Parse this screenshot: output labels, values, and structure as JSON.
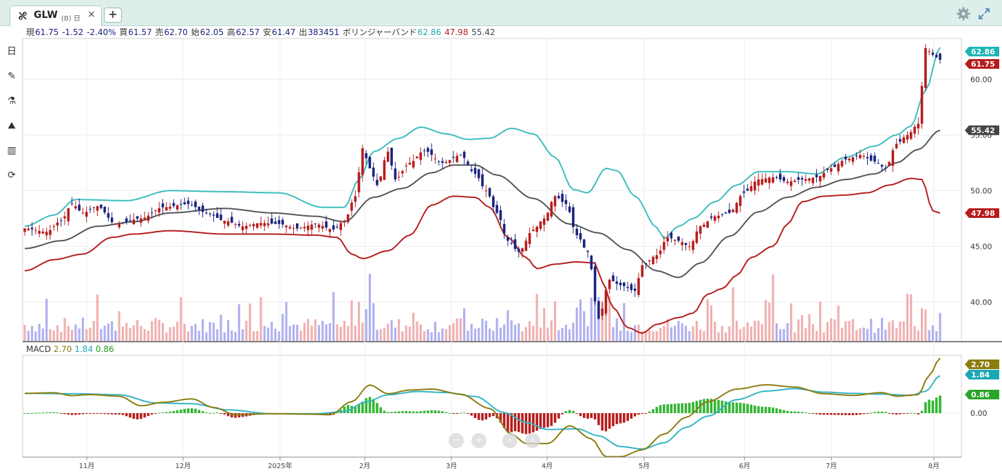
{
  "tab": {
    "symbol": "GLW",
    "suffix": "(B) 日",
    "close": "×",
    "add": "+"
  },
  "toolbar": {
    "icons": [
      "gear-icon",
      "expand-icon"
    ]
  },
  "quote": [
    {
      "label": "現",
      "value": "61.75"
    },
    {
      "label": "",
      "value": "-1.52"
    },
    {
      "label": "",
      "value": "-2.40%"
    },
    {
      "label": "買",
      "value": "61.57"
    },
    {
      "label": "売",
      "value": "62.70"
    },
    {
      "label": "始",
      "value": "62.05"
    },
    {
      "label": "高",
      "value": "62.57"
    },
    {
      "label": "安",
      "value": "61.47"
    },
    {
      "label": "出",
      "value": "383451"
    }
  ],
  "bollinger": {
    "label": "ボリンジャーバンド",
    "upper": "62.86",
    "lower": "47.98",
    "middle": "55.42"
  },
  "side_tools": [
    {
      "name": "timeframe-tool",
      "text": "日"
    },
    {
      "name": "draw-tool-icon",
      "text": "✎"
    },
    {
      "name": "indicator-flask-icon",
      "text": "⚗"
    },
    {
      "name": "chart-style-icon",
      "text": "⛰"
    },
    {
      "name": "bar-chart-icon",
      "text": "▥"
    },
    {
      "name": "refresh-icon",
      "text": "⟳"
    }
  ],
  "macd": {
    "label": "MACD",
    "macd": "2.70",
    "signal": "1.84",
    "hist": "0.86"
  },
  "chart_data": {
    "type": "candlestick",
    "title": "",
    "x_labels": [
      "11月",
      "12月",
      "2025年",
      "2月",
      "3月",
      "4月",
      "5月",
      "6月",
      "7月",
      "8月"
    ],
    "price_ticks": [
      "60.00",
      "55.00",
      "50.00",
      "45.00",
      "40.00"
    ],
    "price_ylim": [
      36.5,
      63.6
    ],
    "macd_ticks": [
      "0.00"
    ],
    "price_tags": [
      {
        "name": "bb-upper-tag",
        "value": "62.86",
        "color": "#1fb5b5"
      },
      {
        "name": "last-price-tag",
        "value": "61.75",
        "color": "#b71c1c"
      },
      {
        "name": "bb-middle-tag",
        "value": "55.42",
        "color": "#444444"
      },
      {
        "name": "bb-lower-tag",
        "value": "47.98",
        "color": "#b71c1c"
      }
    ],
    "macd_tags": [
      {
        "name": "macd-tag",
        "value": "2.70",
        "color": "#8b7d10"
      },
      {
        "name": "signal-tag",
        "value": "1.84",
        "color": "#1aa7b5"
      },
      {
        "name": "hist-tag",
        "value": "0.86",
        "color": "#2aa52a"
      }
    ],
    "colors": {
      "up": "#b71c1c",
      "down": "#1a237e",
      "bb_upper": "#3bbdbd",
      "bb_lower": "#b71c1c",
      "bb_mid": "#555555",
      "macd": "#8b7d10",
      "signal": "#33b5c5",
      "hist_up": "#33b533",
      "hist_down": "#b71c1c",
      "vol_up": "#f0b0b0",
      "vol_down": "#b0b0f0"
    },
    "price_anchors": [
      [
        0,
        46.6
      ],
      [
        6,
        46.3
      ],
      [
        10,
        47.3
      ],
      [
        13,
        48.8
      ],
      [
        16,
        48.0
      ],
      [
        20,
        48.6
      ],
      [
        25,
        47.0
      ],
      [
        32,
        47.5
      ],
      [
        38,
        48.5
      ],
      [
        45,
        48.8
      ],
      [
        50,
        48.0
      ],
      [
        55,
        47.3
      ],
      [
        60,
        46.8
      ],
      [
        65,
        47.1
      ],
      [
        70,
        47.0
      ],
      [
        75,
        46.6
      ],
      [
        80,
        47.0
      ],
      [
        85,
        46.5
      ],
      [
        88,
        47.3
      ],
      [
        91,
        49.5
      ],
      [
        93,
        53.8
      ],
      [
        95,
        52.0
      ],
      [
        97,
        50.5
      ],
      [
        100,
        53.5
      ],
      [
        102,
        51.0
      ],
      [
        106,
        52.5
      ],
      [
        110,
        53.6
      ],
      [
        115,
        52.5
      ],
      [
        120,
        53.2
      ],
      [
        124,
        51.5
      ],
      [
        127,
        50.0
      ],
      [
        130,
        48.0
      ],
      [
        133,
        45.5
      ],
      [
        136,
        44.5
      ],
      [
        140,
        46.5
      ],
      [
        143,
        47.5
      ],
      [
        146,
        49.5
      ],
      [
        149,
        48.8
      ],
      [
        152,
        46.0
      ],
      [
        155,
        44.5
      ],
      [
        158,
        38.5
      ],
      [
        161,
        42.0
      ],
      [
        164,
        41.5
      ],
      [
        168,
        41.0
      ],
      [
        170,
        43.3
      ],
      [
        174,
        44.2
      ],
      [
        177,
        45.8
      ],
      [
        180,
        45.5
      ],
      [
        183,
        45.0
      ],
      [
        186,
        46.8
      ],
      [
        190,
        47.7
      ],
      [
        194,
        48.0
      ],
      [
        198,
        49.8
      ],
      [
        202,
        51.0
      ],
      [
        206,
        51.2
      ],
      [
        210,
        50.8
      ],
      [
        214,
        51.0
      ],
      [
        218,
        51.2
      ],
      [
        222,
        52.0
      ],
      [
        226,
        52.8
      ],
      [
        230,
        53.2
      ],
      [
        234,
        52.6
      ],
      [
        237,
        52.0
      ],
      [
        240,
        54.2
      ],
      [
        243,
        55.0
      ],
      [
        246,
        56.0
      ],
      [
        248,
        62.8
      ],
      [
        250,
        62.2
      ],
      [
        252,
        61.75
      ]
    ],
    "bb_upper_anchors": [
      [
        0,
        46.8
      ],
      [
        8,
        47.8
      ],
      [
        14,
        49.2
      ],
      [
        28,
        49.1
      ],
      [
        40,
        50.0
      ],
      [
        55,
        49.9
      ],
      [
        70,
        49.8
      ],
      [
        82,
        48.5
      ],
      [
        88,
        48.5
      ],
      [
        92,
        51.0
      ],
      [
        96,
        53.5
      ],
      [
        103,
        54.7
      ],
      [
        109,
        55.7
      ],
      [
        116,
        55.1
      ],
      [
        122,
        54.6
      ],
      [
        128,
        54.7
      ],
      [
        134,
        55.6
      ],
      [
        140,
        55.1
      ],
      [
        146,
        53.0
      ],
      [
        151,
        50.1
      ],
      [
        155,
        49.8
      ],
      [
        160,
        52.0
      ],
      [
        163,
        51.8
      ],
      [
        168,
        49.5
      ],
      [
        174,
        46.7
      ],
      [
        176,
        45.7
      ],
      [
        180,
        46.8
      ],
      [
        184,
        47.5
      ],
      [
        190,
        49.0
      ],
      [
        196,
        50.5
      ],
      [
        202,
        51.7
      ],
      [
        210,
        51.7
      ],
      [
        218,
        51.5
      ],
      [
        226,
        53.0
      ],
      [
        234,
        54.0
      ],
      [
        240,
        55.0
      ],
      [
        244,
        55.8
      ],
      [
        248,
        59.0
      ],
      [
        252,
        62.86
      ]
    ],
    "bb_lower_anchors": [
      [
        0,
        42.8
      ],
      [
        8,
        43.8
      ],
      [
        16,
        44.3
      ],
      [
        24,
        45.8
      ],
      [
        30,
        46.1
      ],
      [
        40,
        46.4
      ],
      [
        55,
        46.1
      ],
      [
        68,
        46.1
      ],
      [
        80,
        46.0
      ],
      [
        86,
        45.8
      ],
      [
        90,
        44.3
      ],
      [
        93,
        43.9
      ],
      [
        100,
        44.6
      ],
      [
        106,
        46.0
      ],
      [
        112,
        48.7
      ],
      [
        118,
        49.5
      ],
      [
        124,
        49.4
      ],
      [
        128,
        48.5
      ],
      [
        133,
        45.8
      ],
      [
        138,
        44.0
      ],
      [
        141,
        43.0
      ],
      [
        146,
        43.4
      ],
      [
        152,
        43.6
      ],
      [
        157,
        43.5
      ],
      [
        159,
        41.8
      ],
      [
        162,
        39.5
      ],
      [
        166,
        37.7
      ],
      [
        170,
        37.2
      ],
      [
        174,
        38.0
      ],
      [
        180,
        38.6
      ],
      [
        184,
        39.0
      ],
      [
        188,
        40.7
      ],
      [
        192,
        41.2
      ],
      [
        196,
        42.4
      ],
      [
        200,
        44.0
      ],
      [
        206,
        45.0
      ],
      [
        210,
        47.0
      ],
      [
        214,
        49.0
      ],
      [
        220,
        49.5
      ],
      [
        226,
        49.6
      ],
      [
        232,
        49.8
      ],
      [
        238,
        50.5
      ],
      [
        244,
        51.1
      ],
      [
        247,
        51.0
      ],
      [
        250,
        48.2
      ],
      [
        252,
        47.98
      ]
    ],
    "bb_mid_anchors": [
      [
        0,
        44.8
      ],
      [
        10,
        45.5
      ],
      [
        20,
        46.8
      ],
      [
        30,
        47.2
      ],
      [
        40,
        48.0
      ],
      [
        55,
        48.4
      ],
      [
        68,
        48.0
      ],
      [
        80,
        47.7
      ],
      [
        88,
        47.2
      ],
      [
        96,
        49.4
      ],
      [
        104,
        50.2
      ],
      [
        112,
        51.6
      ],
      [
        118,
        52.3
      ],
      [
        124,
        52.3
      ],
      [
        130,
        51.4
      ],
      [
        140,
        49.3
      ],
      [
        150,
        47.0
      ],
      [
        158,
        46.2
      ],
      [
        166,
        44.7
      ],
      [
        174,
        42.8
      ],
      [
        180,
        42.2
      ],
      [
        186,
        43.5
      ],
      [
        194,
        45.9
      ],
      [
        202,
        48.1
      ],
      [
        210,
        49.4
      ],
      [
        218,
        50.3
      ],
      [
        226,
        51.0
      ],
      [
        234,
        51.5
      ],
      [
        240,
        52.5
      ],
      [
        246,
        53.7
      ],
      [
        252,
        55.42
      ]
    ],
    "macd_anchors": [
      [
        0,
        0.97
      ],
      [
        8,
        1.0
      ],
      [
        13,
        0.86
      ],
      [
        18,
        0.91
      ],
      [
        26,
        0.83
      ],
      [
        32,
        0.36
      ],
      [
        38,
        0.53
      ],
      [
        46,
        0.7
      ],
      [
        52,
        0.28
      ],
      [
        58,
        -0.08
      ],
      [
        68,
        -0.03
      ],
      [
        78,
        -0.05
      ],
      [
        84,
        -0.08
      ],
      [
        90,
        0.56
      ],
      [
        95,
        1.38
      ],
      [
        100,
        0.95
      ],
      [
        106,
        1.13
      ],
      [
        112,
        1.18
      ],
      [
        120,
        0.93
      ],
      [
        128,
        0.23
      ],
      [
        134,
        -1.03
      ],
      [
        138,
        -1.49
      ],
      [
        144,
        -1.49
      ],
      [
        150,
        -0.62
      ],
      [
        156,
        -1.26
      ],
      [
        160,
        -2.14
      ],
      [
        164,
        -2.14
      ],
      [
        170,
        -1.8
      ],
      [
        176,
        -1.03
      ],
      [
        182,
        -0.21
      ],
      [
        188,
        0.56
      ],
      [
        196,
        1.18
      ],
      [
        204,
        1.39
      ],
      [
        212,
        1.28
      ],
      [
        220,
        0.95
      ],
      [
        228,
        0.87
      ],
      [
        236,
        1.01
      ],
      [
        240,
        0.83
      ],
      [
        246,
        0.91
      ],
      [
        249,
        1.85
      ],
      [
        252,
        2.7
      ]
    ],
    "signal_anchors": [
      [
        0,
        0.97
      ],
      [
        14,
        0.95
      ],
      [
        26,
        0.9
      ],
      [
        36,
        0.5
      ],
      [
        46,
        0.46
      ],
      [
        56,
        0.16
      ],
      [
        68,
        -0.03
      ],
      [
        80,
        -0.03
      ],
      [
        88,
        0.08
      ],
      [
        94,
        0.56
      ],
      [
        100,
        0.9
      ],
      [
        108,
        1.06
      ],
      [
        116,
        1.01
      ],
      [
        124,
        0.82
      ],
      [
        132,
        0.03
      ],
      [
        138,
        -0.46
      ],
      [
        144,
        -0.8
      ],
      [
        152,
        -0.77
      ],
      [
        158,
        -1.11
      ],
      [
        164,
        -1.64
      ],
      [
        170,
        -1.76
      ],
      [
        176,
        -1.46
      ],
      [
        182,
        -0.7
      ],
      [
        188,
        -0.15
      ],
      [
        196,
        0.66
      ],
      [
        204,
        1.08
      ],
      [
        212,
        1.2
      ],
      [
        220,
        1.03
      ],
      [
        228,
        0.97
      ],
      [
        236,
        0.93
      ],
      [
        244,
        0.87
      ],
      [
        248,
        1.07
      ],
      [
        252,
        1.84
      ]
    ]
  }
}
